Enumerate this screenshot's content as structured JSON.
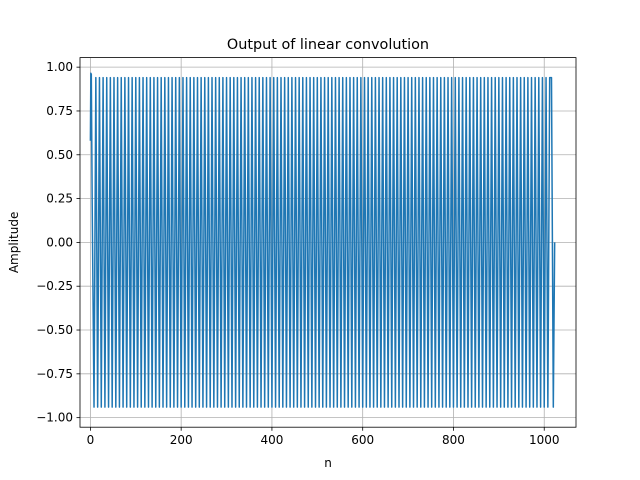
{
  "chart_data": {
    "type": "line",
    "title": "Output of linear convolution",
    "xlabel": "n",
    "ylabel": "Amplitude",
    "xlim": [
      -22.9,
      1070
    ],
    "ylim": [
      -1.0545,
      1.0545
    ],
    "xticks": [
      0,
      200,
      400,
      600,
      800,
      1000
    ],
    "xtick_labels": [
      "0",
      "200",
      "400",
      "600",
      "800",
      "1000"
    ],
    "yticks": [
      -1.0,
      -0.75,
      -0.5,
      -0.25,
      0.0,
      0.25,
      0.5,
      0.75,
      1.0
    ],
    "ytick_labels": [
      "−1.00",
      "−0.75",
      "−0.50",
      "−0.25",
      "0.00",
      "0.25",
      "0.50",
      "0.75",
      "1.00"
    ],
    "grid": true,
    "series": [
      {
        "color": "#1f77b4",
        "length": 1024,
        "signal": "oscillation with steady amplitude ~0.94 and period ~8 samples; starts near 0.58, rises to ~0.965 within first few samples; ends at 0.0 after n≈1016",
        "start_points": [
          [
            0,
            0.58
          ],
          [
            1,
            0.965
          ],
          [
            2,
            0.96
          ],
          [
            4,
            0.21
          ],
          [
            8,
            -0.94
          ]
        ],
        "steady_amplitude": 0.94,
        "period": 8,
        "steady_range": [
          8,
          1016
        ],
        "end_points": [
          [
            1016,
            0.94
          ],
          [
            1020,
            -0.94
          ],
          [
            1023,
            0.0
          ]
        ]
      }
    ],
    "colors": {
      "line": "#1f77b4",
      "grid": "#b0b0b0",
      "axes": "#000000"
    }
  }
}
